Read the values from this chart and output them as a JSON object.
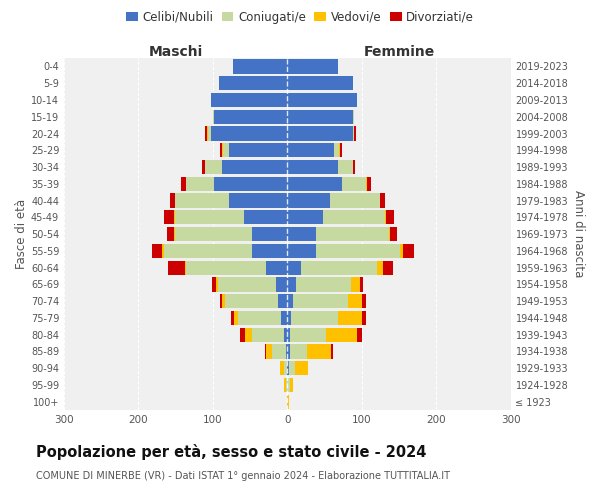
{
  "age_groups": [
    "100+",
    "95-99",
    "90-94",
    "85-89",
    "80-84",
    "75-79",
    "70-74",
    "65-69",
    "60-64",
    "55-59",
    "50-54",
    "45-49",
    "40-44",
    "35-39",
    "30-34",
    "25-29",
    "20-24",
    "15-19",
    "10-14",
    "5-9",
    "0-4"
  ],
  "birth_years": [
    "≤ 1923",
    "1924-1928",
    "1929-1933",
    "1934-1938",
    "1939-1943",
    "1944-1948",
    "1949-1953",
    "1954-1958",
    "1959-1963",
    "1964-1968",
    "1969-1973",
    "1974-1978",
    "1979-1983",
    "1984-1988",
    "1989-1993",
    "1994-1998",
    "1999-2003",
    "2004-2008",
    "2009-2013",
    "2014-2018",
    "2019-2023"
  ],
  "colors": {
    "celibi": "#4472c4",
    "coniugati": "#c5d9a0",
    "vedovi": "#ffc000",
    "divorziati": "#cc0000"
  },
  "maschi": {
    "celibi": [
      0,
      0,
      0,
      2,
      5,
      8,
      12,
      15,
      28,
      48,
      48,
      58,
      78,
      98,
      88,
      78,
      103,
      98,
      103,
      92,
      73
    ],
    "coniugati": [
      0,
      2,
      5,
      18,
      42,
      58,
      72,
      78,
      108,
      118,
      103,
      93,
      73,
      38,
      23,
      8,
      4,
      2,
      0,
      0,
      0
    ],
    "vedovi": [
      0,
      2,
      5,
      8,
      10,
      6,
      4,
      3,
      2,
      2,
      1,
      1,
      0,
      0,
      0,
      2,
      1,
      0,
      0,
      0,
      0
    ],
    "divorziati": [
      0,
      0,
      0,
      2,
      6,
      3,
      3,
      5,
      22,
      14,
      10,
      14,
      7,
      7,
      3,
      3,
      2,
      0,
      0,
      0,
      0
    ]
  },
  "femmine": {
    "nubili": [
      0,
      0,
      2,
      3,
      4,
      5,
      8,
      12,
      18,
      38,
      38,
      48,
      58,
      73,
      68,
      63,
      88,
      88,
      93,
      88,
      68
    ],
    "coniugate": [
      0,
      3,
      8,
      23,
      48,
      63,
      73,
      73,
      103,
      113,
      98,
      83,
      66,
      33,
      20,
      7,
      2,
      1,
      0,
      0,
      0
    ],
    "vedove": [
      2,
      4,
      18,
      33,
      42,
      33,
      20,
      12,
      7,
      5,
      2,
      2,
      1,
      1,
      0,
      1,
      0,
      0,
      0,
      0,
      0
    ],
    "divorziate": [
      0,
      0,
      0,
      2,
      7,
      5,
      5,
      5,
      14,
      14,
      10,
      10,
      6,
      6,
      3,
      2,
      2,
      0,
      0,
      0,
      0
    ]
  },
  "title": "Popolazione per età, sesso e stato civile - 2024",
  "subtitle": "COMUNE DI MINERBE (VR) - Dati ISTAT 1° gennaio 2024 - Elaborazione TUTTITALIA.IT",
  "xlabel_left": "Maschi",
  "xlabel_right": "Femmine",
  "ylabel_left": "Fasce di età",
  "ylabel_right": "Anni di nascita",
  "xlim": 300,
  "background_color": "#ffffff",
  "plot_bg_color": "#f0f0f0"
}
